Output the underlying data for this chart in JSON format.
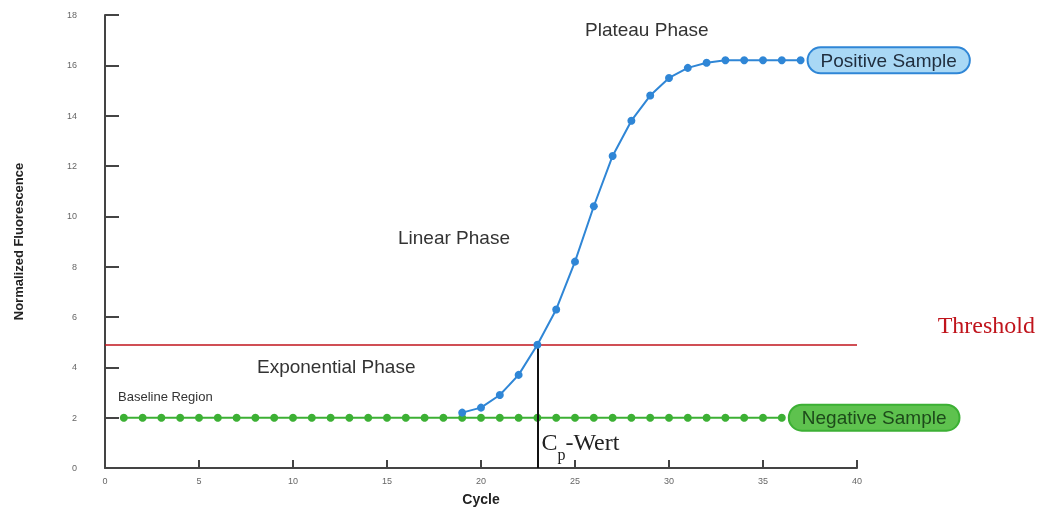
{
  "chart_data": {
    "type": "line",
    "xlabel": "Cycle",
    "ylabel": "Normalized Fluorescence",
    "xlim": [
      0,
      40
    ],
    "xticks": [
      0,
      5,
      10,
      15,
      20,
      25,
      30,
      35,
      40
    ],
    "ylim": [
      0,
      18
    ],
    "yticks": [
      0,
      2,
      4,
      6,
      8,
      10,
      12,
      14,
      16,
      18
    ],
    "grid": false,
    "legend": false,
    "marker": "circle",
    "series": [
      {
        "name": "Positive Sample",
        "color": "#2f86d6",
        "x": [
          19,
          20,
          21,
          22,
          23,
          24,
          25,
          26,
          27,
          28,
          29,
          30,
          31,
          32,
          33,
          34,
          35,
          36,
          37
        ],
        "values": [
          2.2,
          2.4,
          2.9,
          3.7,
          4.9,
          6.3,
          8.2,
          10.4,
          12.4,
          13.8,
          14.8,
          15.5,
          15.9,
          16.1,
          16.2,
          16.2,
          16.2,
          16.2,
          16.2
        ]
      },
      {
        "name": "Negative Sample",
        "color": "#3cb034",
        "x": [
          1,
          2,
          3,
          4,
          5,
          6,
          7,
          8,
          9,
          10,
          11,
          12,
          13,
          14,
          15,
          16,
          17,
          18,
          19,
          20,
          21,
          22,
          23,
          24,
          25,
          26,
          27,
          28,
          29,
          30,
          31,
          32,
          33,
          34,
          35,
          36
        ],
        "values": [
          2,
          2,
          2,
          2,
          2,
          2,
          2,
          2,
          2,
          2,
          2,
          2,
          2,
          2,
          2,
          2,
          2,
          2,
          2,
          2,
          2,
          2,
          2,
          2,
          2,
          2,
          2,
          2,
          2,
          2,
          2,
          2,
          2,
          2,
          2,
          2
        ]
      }
    ],
    "ref_lines": [
      {
        "axis": "y",
        "value": 4.9,
        "label": "Threshold",
        "color": "#c0141c"
      }
    ],
    "annotations": [
      "Plateau Phase",
      "Linear Phase",
      "Exponential Phase",
      "Baseline Region",
      {
        "text": "C$_{p}$-Wert",
        "x": 23,
        "y": 4.9
      }
    ]
  }
}
